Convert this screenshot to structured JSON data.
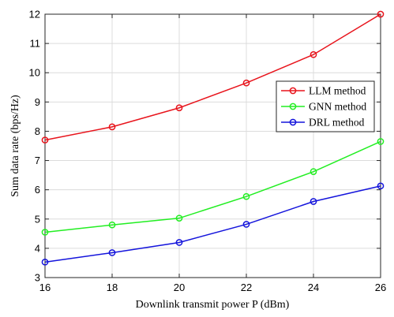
{
  "chart_data": {
    "type": "line",
    "x": [
      16,
      18,
      20,
      22,
      24,
      26
    ],
    "xlabel": "Downlink transmit power P (dBm)",
    "ylabel": "Sum data rate (bps/Hz)",
    "xlim": [
      16,
      26
    ],
    "ylim": [
      3,
      12
    ],
    "xticks": [
      "16",
      "18",
      "20",
      "22",
      "24",
      "26"
    ],
    "yticks": [
      "3",
      "4",
      "5",
      "6",
      "7",
      "8",
      "9",
      "10",
      "11",
      "12"
    ],
    "grid": true,
    "legend_position": "upper-right",
    "series": [
      {
        "name": "LLM method",
        "color": "#e8141c",
        "marker": "circle",
        "values": [
          7.7,
          8.15,
          8.8,
          9.65,
          10.62,
          12.0
        ]
      },
      {
        "name": "GNN method",
        "color": "#22ee22",
        "marker": "circle",
        "values": [
          4.55,
          4.8,
          5.03,
          5.77,
          6.62,
          7.65
        ]
      },
      {
        "name": "DRL method",
        "color": "#1414dc",
        "marker": "circle",
        "values": [
          3.53,
          3.85,
          4.2,
          4.82,
          5.6,
          6.13
        ]
      }
    ]
  }
}
